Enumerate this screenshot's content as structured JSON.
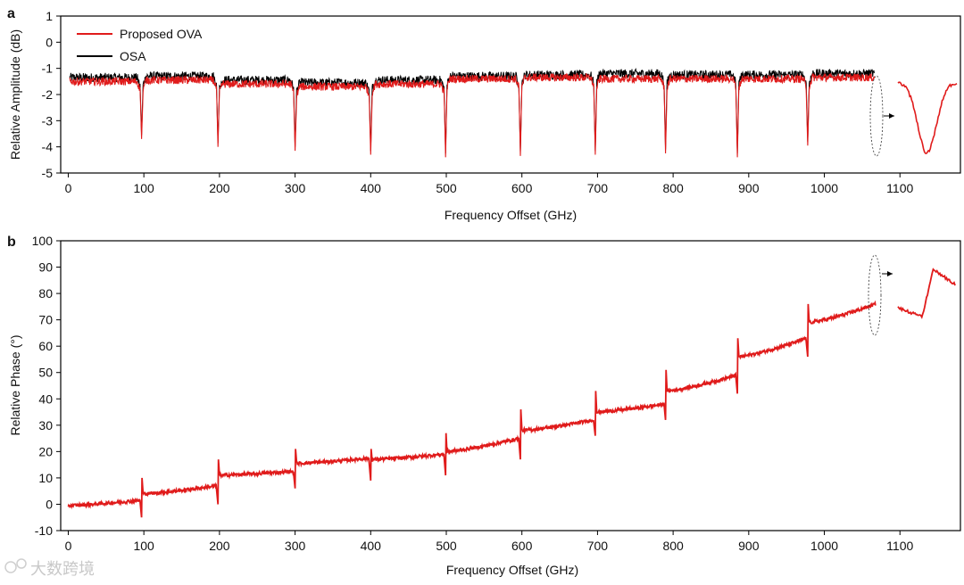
{
  "chart_data": [
    {
      "panel": "a",
      "type": "line",
      "xlabel": "Frequency Offset (GHz)",
      "ylabel": "Relative Amplitude (dB)",
      "xlim": [
        -10,
        1180
      ],
      "ylim": [
        -5,
        1
      ],
      "xticks": [
        0,
        100,
        200,
        300,
        400,
        500,
        600,
        700,
        800,
        900,
        1000,
        1100
      ],
      "yticks": [
        -5,
        -4,
        -3,
        -2,
        -1,
        0,
        1
      ],
      "legend": {
        "placement": "top-left",
        "entries": [
          "Proposed OVA",
          "OSA"
        ]
      },
      "series": [
        {
          "name": "Proposed OVA",
          "color": "#e01b1b",
          "dips": [
            {
              "x": 97,
              "y": -3.7
            },
            {
              "x": 198,
              "y": -4.0
            },
            {
              "x": 300,
              "y": -4.15
            },
            {
              "x": 400,
              "y": -4.3
            },
            {
              "x": 499,
              "y": -4.4
            },
            {
              "x": 598,
              "y": -4.35
            },
            {
              "x": 697,
              "y": -4.3
            },
            {
              "x": 790,
              "y": -4.25
            },
            {
              "x": 885,
              "y": -4.4
            },
            {
              "x": 978,
              "y": -3.95
            }
          ],
          "segment_levels": [
            -1.5,
            -1.45,
            -1.6,
            -1.7,
            -1.6,
            -1.4,
            -1.35,
            -1.4,
            -1.4,
            -1.4,
            -1.35
          ]
        },
        {
          "name": "OSA",
          "color": "#000000",
          "segment_levels": [
            -1.35,
            -1.3,
            -1.45,
            -1.55,
            -1.45,
            -1.3,
            -1.25,
            -1.2,
            -1.25,
            -1.25,
            -1.2
          ]
        }
      ],
      "zoom_inset": {
        "type": "dip-detail",
        "min_y": -4.1
      }
    },
    {
      "panel": "b",
      "type": "line",
      "xlabel": "Frequency Offset (GHz)",
      "ylabel": "Relative Phase (°)",
      "xlim": [
        -10,
        1180
      ],
      "ylim": [
        -10,
        100
      ],
      "xticks": [
        0,
        100,
        200,
        300,
        400,
        500,
        600,
        700,
        800,
        900,
        1000,
        1100
      ],
      "yticks": [
        -10,
        0,
        10,
        20,
        30,
        40,
        50,
        60,
        70,
        80,
        90,
        100
      ],
      "series": [
        {
          "name": "Proposed OVA",
          "color": "#e01b1b",
          "jumps": [
            {
              "x": 97,
              "low": -5,
              "high": 10
            },
            {
              "x": 198,
              "low": 0,
              "high": 17
            },
            {
              "x": 300,
              "low": 6,
              "high": 21
            },
            {
              "x": 400,
              "low": 9,
              "high": 21
            },
            {
              "x": 499,
              "low": 11,
              "high": 27
            },
            {
              "x": 598,
              "low": 17,
              "high": 36
            },
            {
              "x": 697,
              "low": 26,
              "high": 43
            },
            {
              "x": 790,
              "low": 32,
              "high": 51
            },
            {
              "x": 885,
              "low": 42,
              "high": 63
            },
            {
              "x": 978,
              "low": 56,
              "high": 76
            }
          ],
          "segments": [
            {
              "x0": 0,
              "x1": 95,
              "y0": -0.5,
              "y1": 1.5
            },
            {
              "x0": 99,
              "x1": 196,
              "y0": 4,
              "y1": 7
            },
            {
              "x0": 200,
              "x1": 298,
              "y0": 11,
              "y1": 12.5
            },
            {
              "x0": 302,
              "x1": 398,
              "y0": 15.5,
              "y1": 17.5
            },
            {
              "x0": 402,
              "x1": 497,
              "y0": 17,
              "y1": 19
            },
            {
              "x0": 501,
              "x1": 596,
              "y0": 20,
              "y1": 25
            },
            {
              "x0": 600,
              "x1": 695,
              "y0": 28,
              "y1": 32
            },
            {
              "x0": 699,
              "x1": 788,
              "y0": 35,
              "y1": 38
            },
            {
              "x0": 792,
              "x1": 883,
              "y0": 43,
              "y1": 49
            },
            {
              "x0": 887,
              "x1": 976,
              "y0": 56,
              "y1": 63
            },
            {
              "x0": 980,
              "x1": 1068,
              "y0": 69,
              "y1": 76
            }
          ]
        }
      ],
      "zoom_inset": {
        "type": "jump-detail"
      }
    }
  ],
  "panel_labels": {
    "a": "a",
    "b": "b"
  },
  "legend_labels": {
    "ova": "Proposed OVA",
    "osa": "OSA"
  },
  "watermark": "大数跨境",
  "colors": {
    "ova": "#e01b1b",
    "osa": "#000000"
  }
}
